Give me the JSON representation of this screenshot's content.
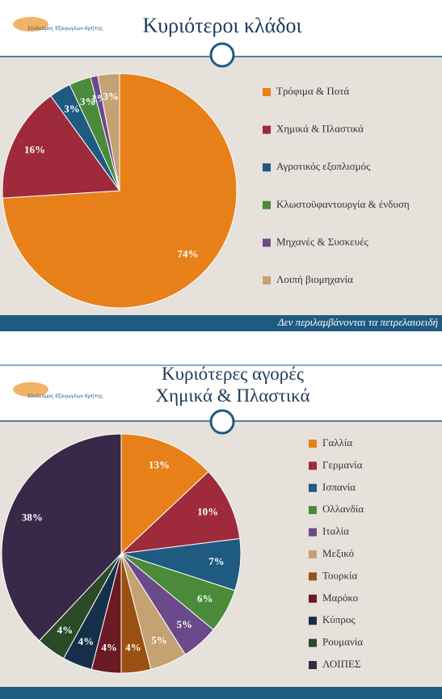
{
  "logo_text": "Σύνδεσμος Εξαγωγέων Κρήτης",
  "chart_data": [
    {
      "type": "pie",
      "title": "Κυριότεροι κλάδοι",
      "categories": [
        "Τρόφιμα & Ποτά",
        "Χημικά & Πλαστικά",
        "Αγροτικός εξοπλισμός",
        "Κλωστοϋφαντουργία & ένδυση",
        "Μηχανές & Συσκευές",
        "Λοιπή βιομηχανία"
      ],
      "values": [
        74,
        16,
        3,
        3,
        1,
        3
      ],
      "value_labels": [
        "74%",
        "16%",
        "3%",
        "3%",
        "1%",
        "3%"
      ],
      "colors": [
        "#e8801a",
        "#9e2a3c",
        "#1f5a80",
        "#4a8a3a",
        "#6a4a8a",
        "#c4a274"
      ],
      "note": "Δεν περιλαμβάνονται τα πετρελαιοειδή",
      "legend": "right"
    },
    {
      "type": "pie",
      "title": "Κυριότερες αγορές",
      "subtitle": "Χημικά & Πλαστικά",
      "categories": [
        "Γαλλία",
        "Γερμανία",
        "Ισπανία",
        "Ολλανδία",
        "Ιταλία",
        "Μεξικό",
        "Τουρκία",
        "Μαρόκο",
        "Κύπρος",
        "Ρουμανία",
        "ΛΟΙΠΕΣ"
      ],
      "values": [
        13,
        10,
        7,
        6,
        5,
        5,
        4,
        4,
        4,
        4,
        38
      ],
      "value_labels": [
        "13%",
        "10%",
        "7%",
        "6%",
        "5%",
        "5%",
        "4%",
        "4%",
        "4%",
        "4%",
        "38%"
      ],
      "colors": [
        "#e8801a",
        "#9e2a3c",
        "#1f5a80",
        "#4a8a3a",
        "#6a4a8a",
        "#c4a274",
        "#9a5010",
        "#6a1a22",
        "#15304a",
        "#2a4a28",
        "#3a2848"
      ],
      "legend": "right"
    }
  ]
}
